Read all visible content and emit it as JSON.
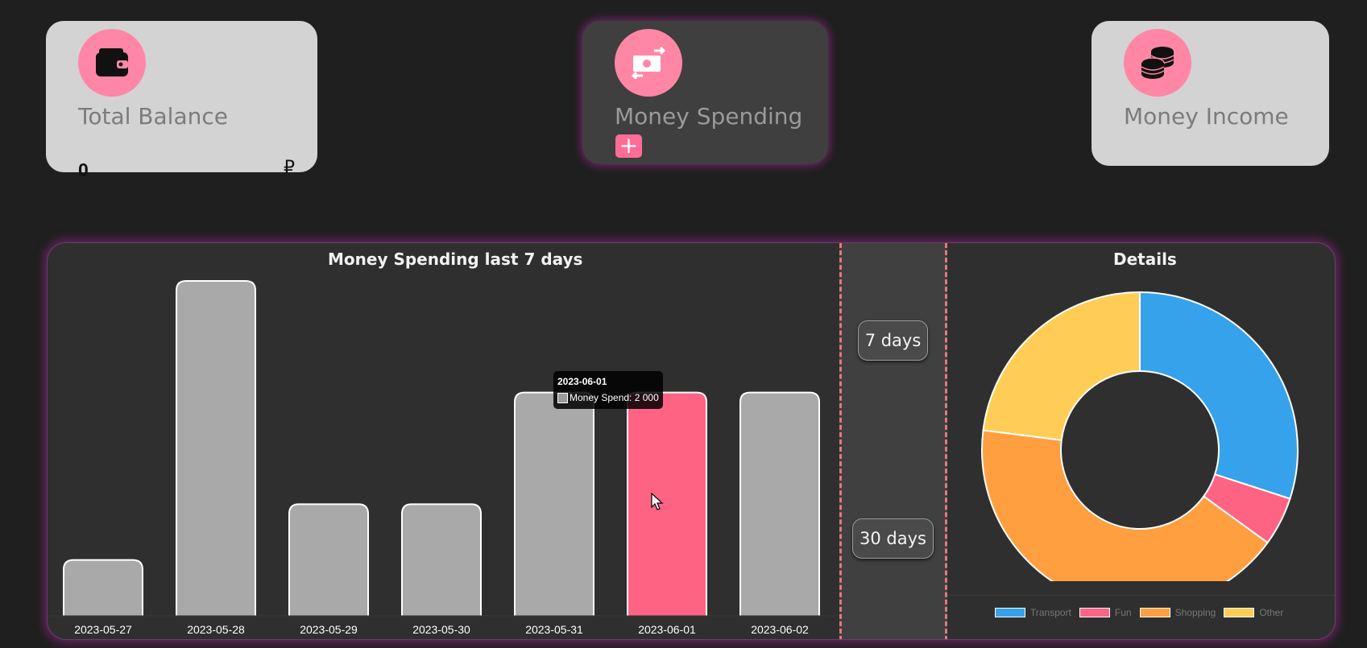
{
  "cards": {
    "balance": {
      "title": "Total Balance",
      "value": "0",
      "currency": "₽",
      "icon": "wallet-icon"
    },
    "spending": {
      "title": "Money Spending",
      "add_label": "+",
      "icon": "money-exchange-icon"
    },
    "income": {
      "title": "Money Income",
      "icon": "coins-icon"
    }
  },
  "range_buttons": {
    "seven": "7 days",
    "thirty": "30 days"
  },
  "colors": {
    "accent": "#ff87a5",
    "bar": "#a9a9a9",
    "bar_active": "#ff6384",
    "transport": "#36a2eb",
    "fun": "#ff6384",
    "shopping": "#ff9f40",
    "other": "#ffcd56"
  },
  "tooltip": {
    "title": "2023-06-01",
    "label": "Money Spend: 2 000"
  },
  "chart_data": [
    {
      "type": "bar",
      "title": "Money Spending last 7 days",
      "categories": [
        "2023-05-27",
        "2023-05-28",
        "2023-05-29",
        "2023-05-30",
        "2023-05-31",
        "2023-06-01",
        "2023-06-02"
      ],
      "values": [
        500,
        3000,
        1000,
        1000,
        2000,
        2000,
        2000
      ],
      "active_index": 5,
      "ylim": [
        0,
        3000
      ],
      "grid": false
    },
    {
      "type": "pie",
      "title": "Details",
      "labels": [
        "Transport",
        "Fun",
        "Shopping",
        "Other"
      ],
      "values": [
        30,
        5,
        42,
        23
      ],
      "donut": true,
      "legend_position": "bottom"
    }
  ]
}
